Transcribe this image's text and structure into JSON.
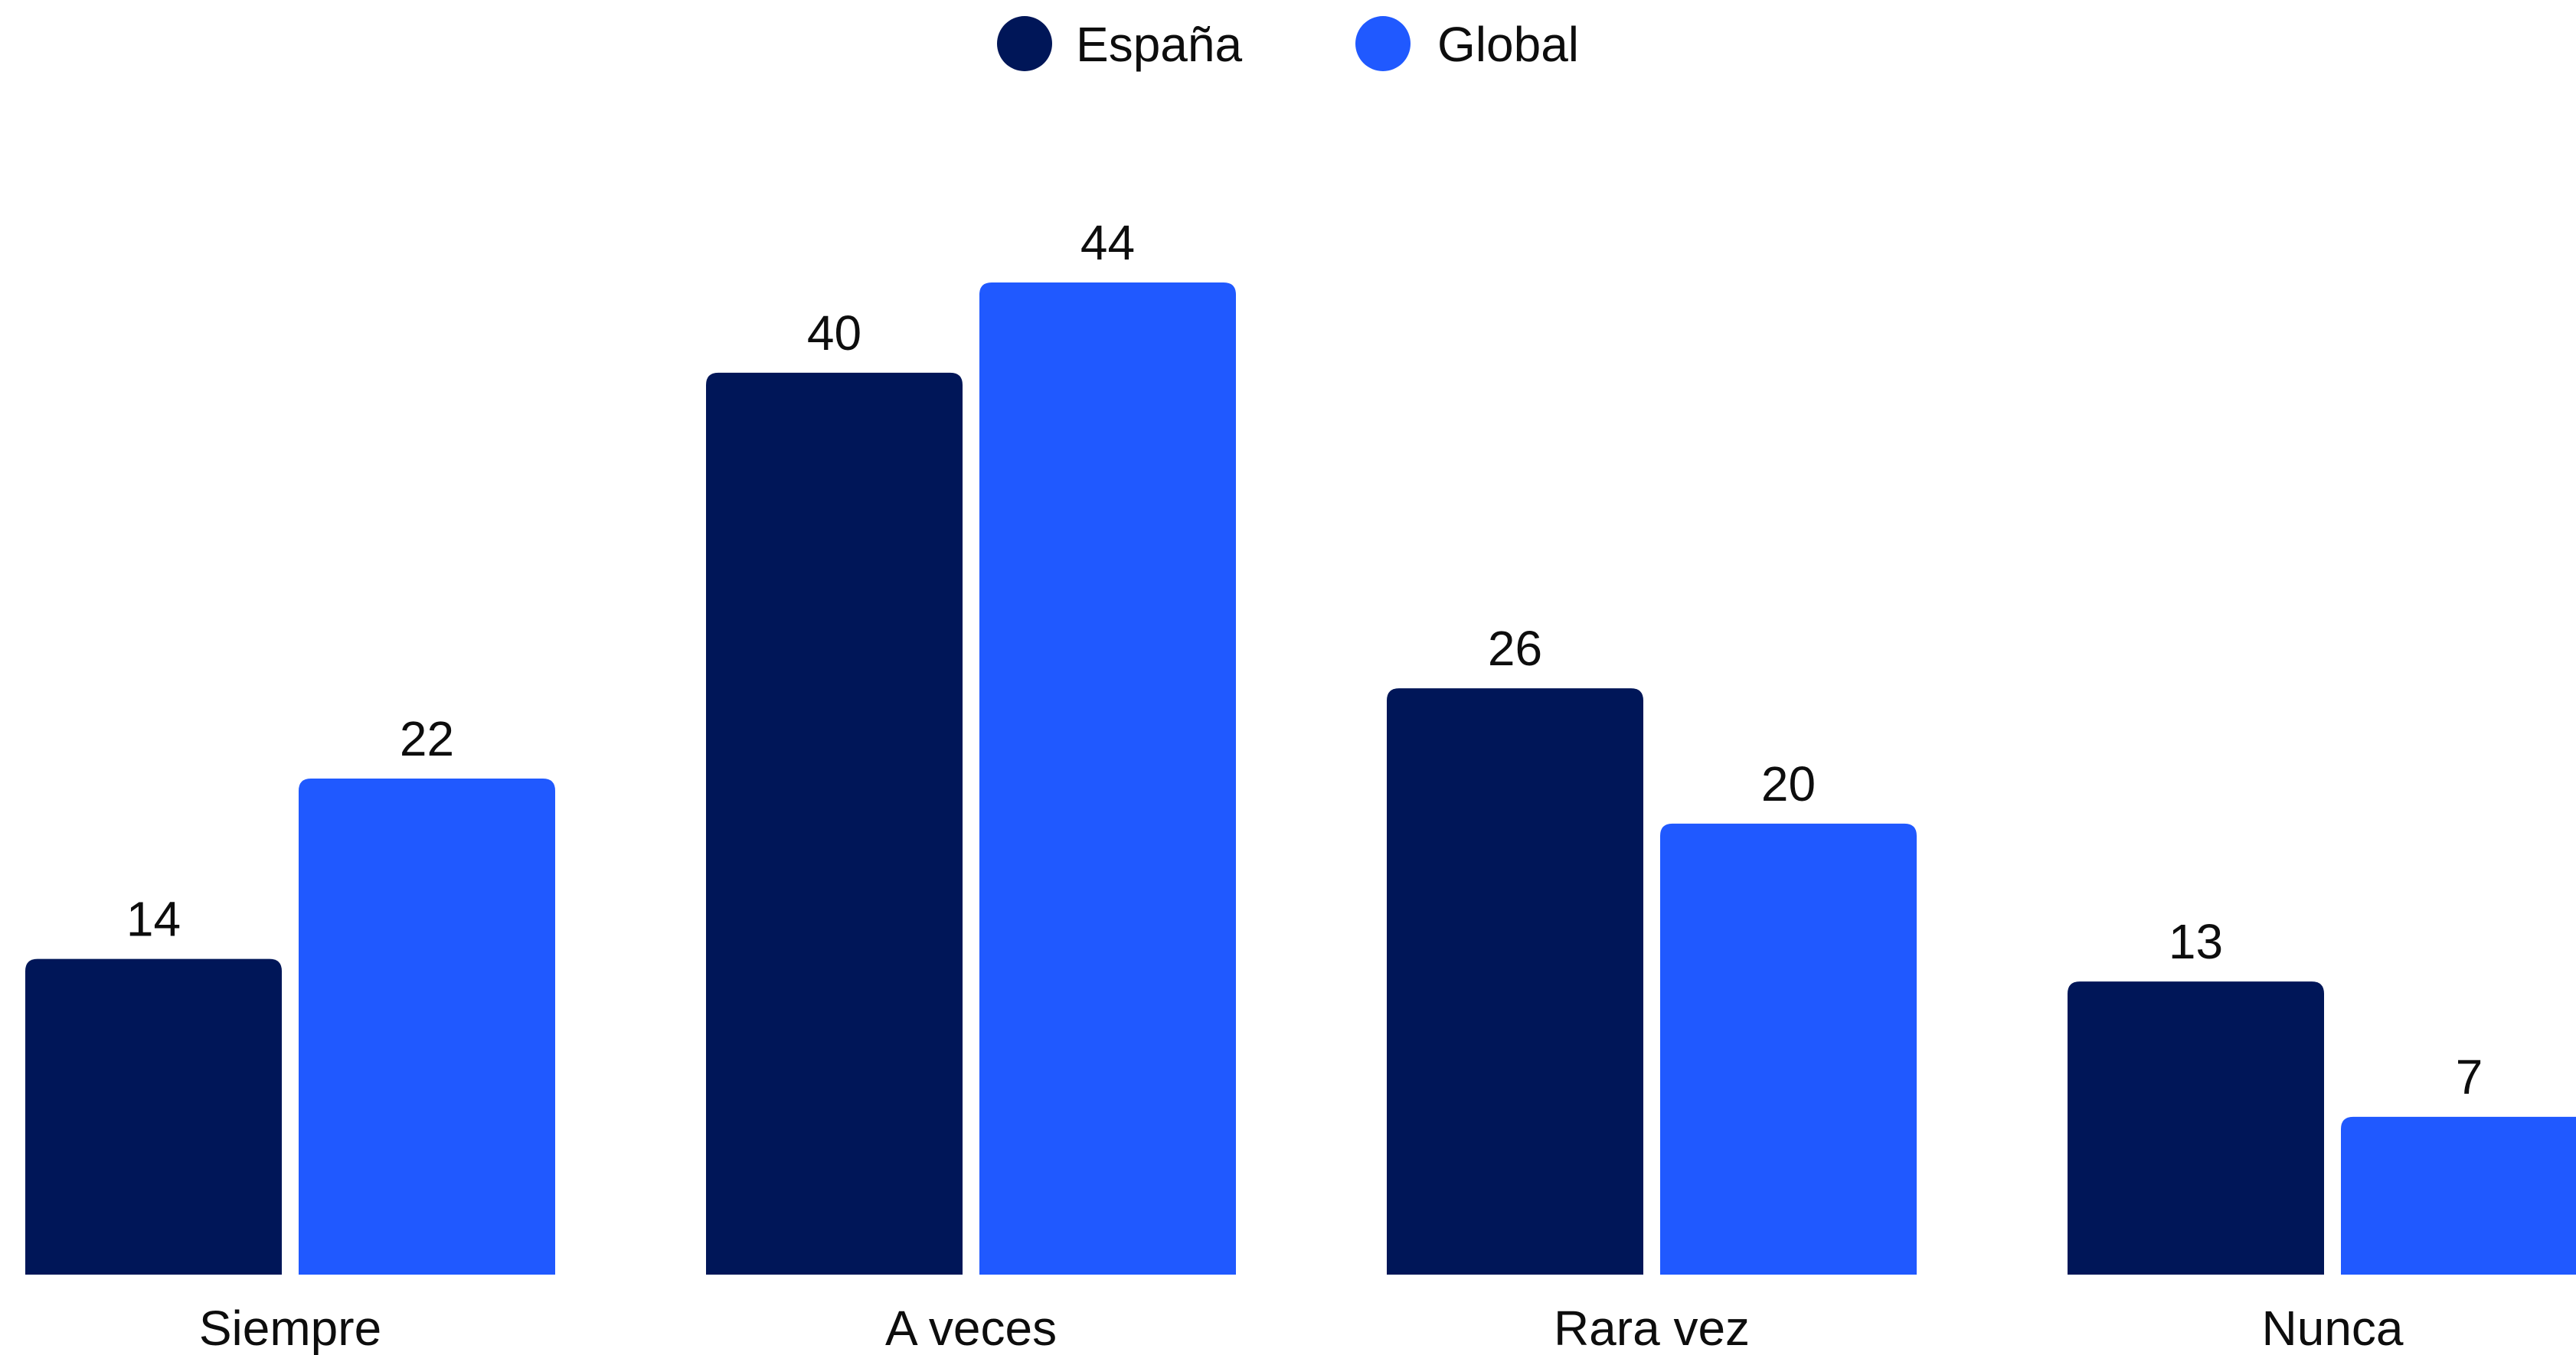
{
  "chart_data": {
    "type": "bar",
    "categories": [
      "Siempre",
      "A veces",
      "Rara vez",
      "Nunca"
    ],
    "series": [
      {
        "name": "España",
        "color": "#001658",
        "values": [
          14,
          40,
          26,
          13
        ]
      },
      {
        "name": "Global",
        "color": "#2059ff",
        "values": [
          22,
          44,
          20,
          7
        ]
      }
    ],
    "legend": "top-center",
    "grid": false,
    "ylim": [
      0,
      44
    ],
    "data_labels": true
  }
}
